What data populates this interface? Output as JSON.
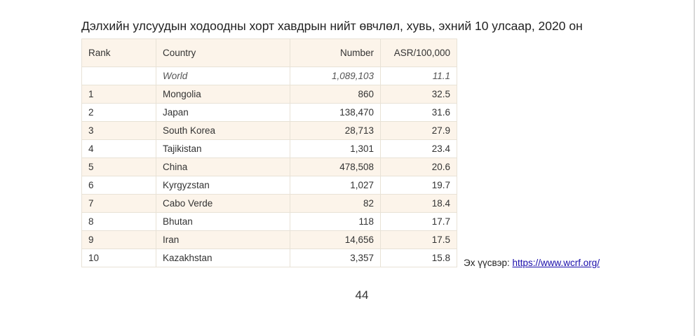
{
  "title": "Дэлхийн улсуудын ходоодны хорт хавдрын нийт өвчлөл, хувь, эхний 10 улсаар, 2020 он",
  "table": {
    "headers": {
      "rank": "Rank",
      "country": "Country",
      "number": "Number",
      "asr": "ASR/100,000"
    },
    "world": {
      "rank": "",
      "country": "World",
      "number": "1,089,103",
      "asr": "11.1"
    },
    "rows": [
      {
        "rank": "1",
        "country": "Mongolia",
        "number": "860",
        "asr": "32.5"
      },
      {
        "rank": "2",
        "country": "Japan",
        "number": "138,470",
        "asr": "31.6"
      },
      {
        "rank": "3",
        "country": "South Korea",
        "number": "28,713",
        "asr": "27.9"
      },
      {
        "rank": "4",
        "country": "Tajikistan",
        "number": "1,301",
        "asr": "23.4"
      },
      {
        "rank": "5",
        "country": "China",
        "number": "478,508",
        "asr": "20.6"
      },
      {
        "rank": "6",
        "country": "Kyrgyzstan",
        "number": "1,027",
        "asr": "19.7"
      },
      {
        "rank": "7",
        "country": "Cabo Verde",
        "number": "82",
        "asr": "18.4"
      },
      {
        "rank": "8",
        "country": "Bhutan",
        "number": "118",
        "asr": "17.7"
      },
      {
        "rank": "9",
        "country": "Iran",
        "number": "14,656",
        "asr": "17.5"
      },
      {
        "rank": "10",
        "country": "Kazakhstan",
        "number": "3,357",
        "asr": "15.8"
      }
    ]
  },
  "source": {
    "label": "Эх үүсвэр: ",
    "link_text": "https://www.wcrf.org/"
  },
  "page_number": "44",
  "colors": {
    "row_shade": "#fcf4ea",
    "border": "#e8e2d6",
    "link": "#1a0dab"
  }
}
